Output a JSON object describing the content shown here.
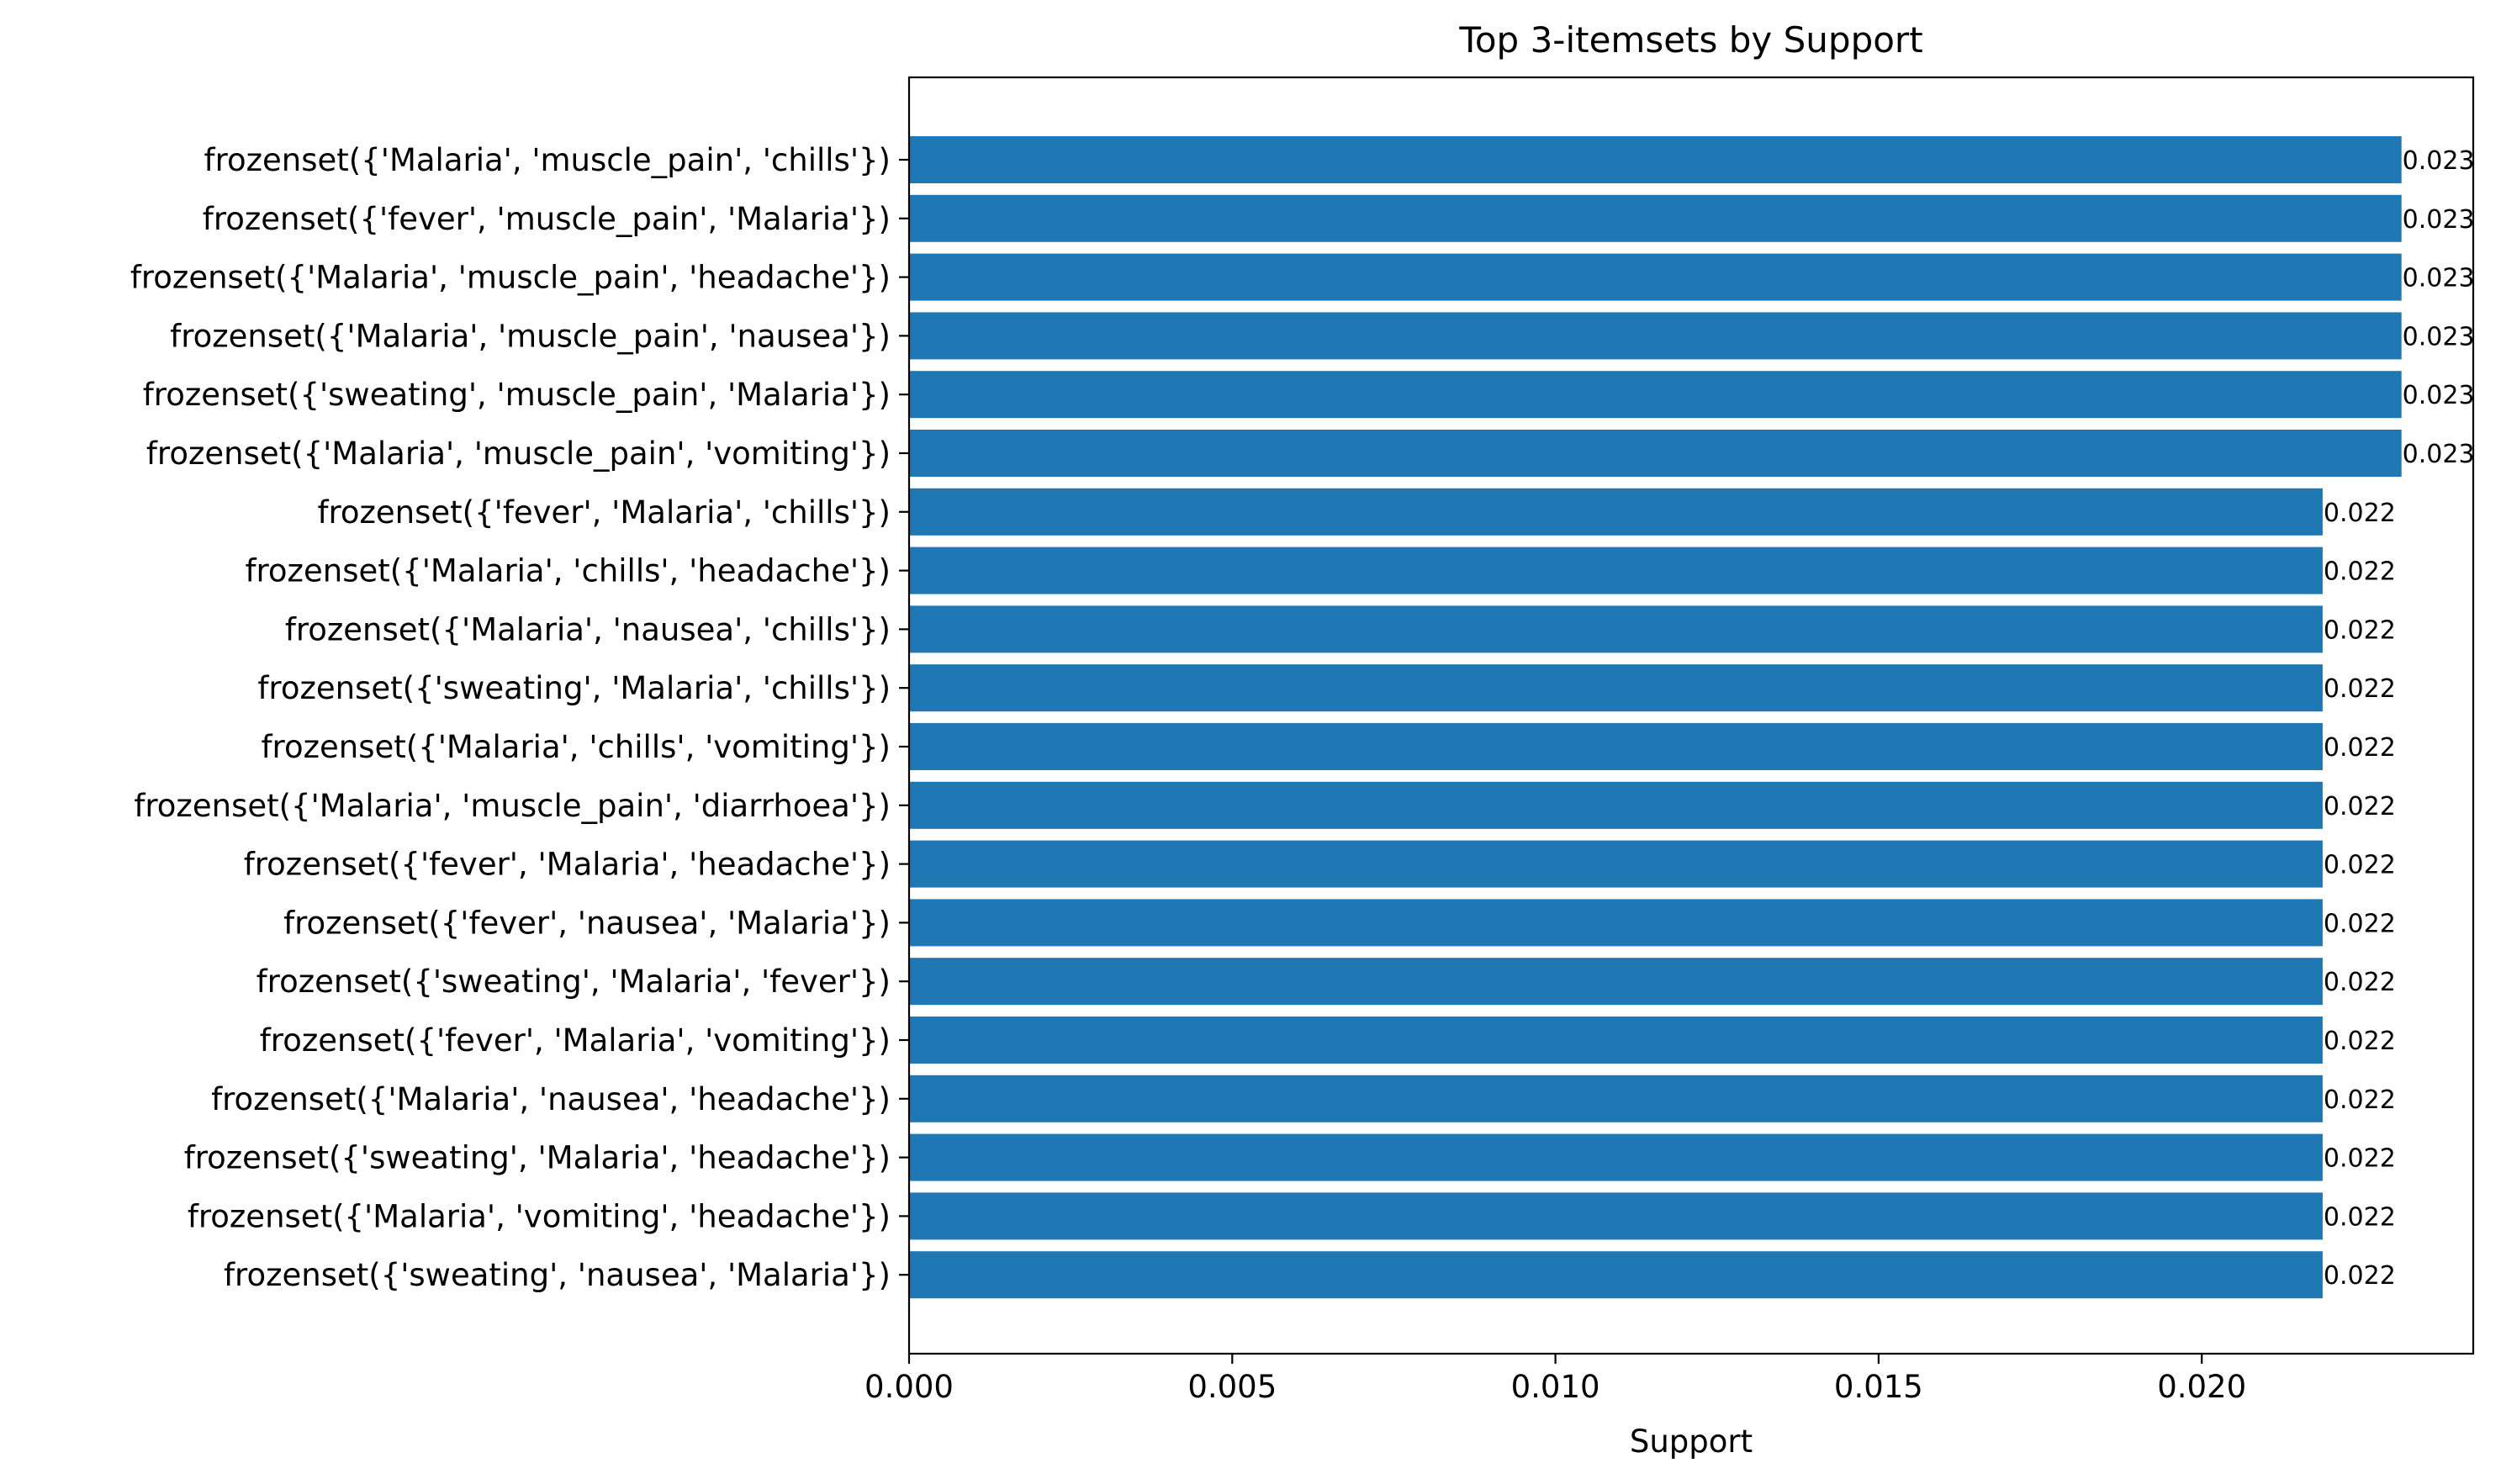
{
  "chart_data": {
    "type": "bar",
    "orientation": "horizontal",
    "title": "Top 3-itemsets by Support",
    "xlabel": "Support",
    "ylabel": "",
    "xlim": [
      0,
      0.0242
    ],
    "xticks": [
      0,
      0.005,
      0.01,
      0.015,
      0.02
    ],
    "xtick_labels": [
      "0.000",
      "0.005",
      "0.010",
      "0.015",
      "0.020"
    ],
    "grid": false,
    "bar_color": "#1f77b4",
    "categories": [
      "frozenset({'Malaria', 'muscle_pain', 'chills'})",
      "frozenset({'fever', 'muscle_pain', 'Malaria'})",
      "frozenset({'Malaria', 'muscle_pain', 'headache'})",
      "frozenset({'Malaria', 'muscle_pain', 'nausea'})",
      "frozenset({'sweating', 'muscle_pain', 'Malaria'})",
      "frozenset({'Malaria', 'muscle_pain', 'vomiting'})",
      "frozenset({'fever', 'Malaria', 'chills'})",
      "frozenset({'Malaria', 'chills', 'headache'})",
      "frozenset({'Malaria', 'nausea', 'chills'})",
      "frozenset({'sweating', 'Malaria', 'chills'})",
      "frozenset({'Malaria', 'chills', 'vomiting'})",
      "frozenset({'Malaria', 'muscle_pain', 'diarrhoea'})",
      "frozenset({'fever', 'Malaria', 'headache'})",
      "frozenset({'fever', 'nausea', 'Malaria'})",
      "frozenset({'sweating', 'Malaria', 'fever'})",
      "frozenset({'fever', 'Malaria', 'vomiting'})",
      "frozenset({'Malaria', 'nausea', 'headache'})",
      "frozenset({'sweating', 'Malaria', 'headache'})",
      "frozenset({'Malaria', 'vomiting', 'headache'})",
      "frozenset({'sweating', 'nausea', 'Malaria'})"
    ],
    "values": [
      0.02309,
      0.02309,
      0.02309,
      0.02309,
      0.02309,
      0.02309,
      0.02187,
      0.02187,
      0.02187,
      0.02187,
      0.02187,
      0.02187,
      0.02187,
      0.02187,
      0.02187,
      0.02187,
      0.02187,
      0.02187,
      0.02187,
      0.02187
    ],
    "value_labels": [
      "0.023",
      "0.023",
      "0.023",
      "0.023",
      "0.023",
      "0.023",
      "0.022",
      "0.022",
      "0.022",
      "0.022",
      "0.022",
      "0.022",
      "0.022",
      "0.022",
      "0.022",
      "0.022",
      "0.022",
      "0.022",
      "0.022",
      "0.022"
    ]
  }
}
